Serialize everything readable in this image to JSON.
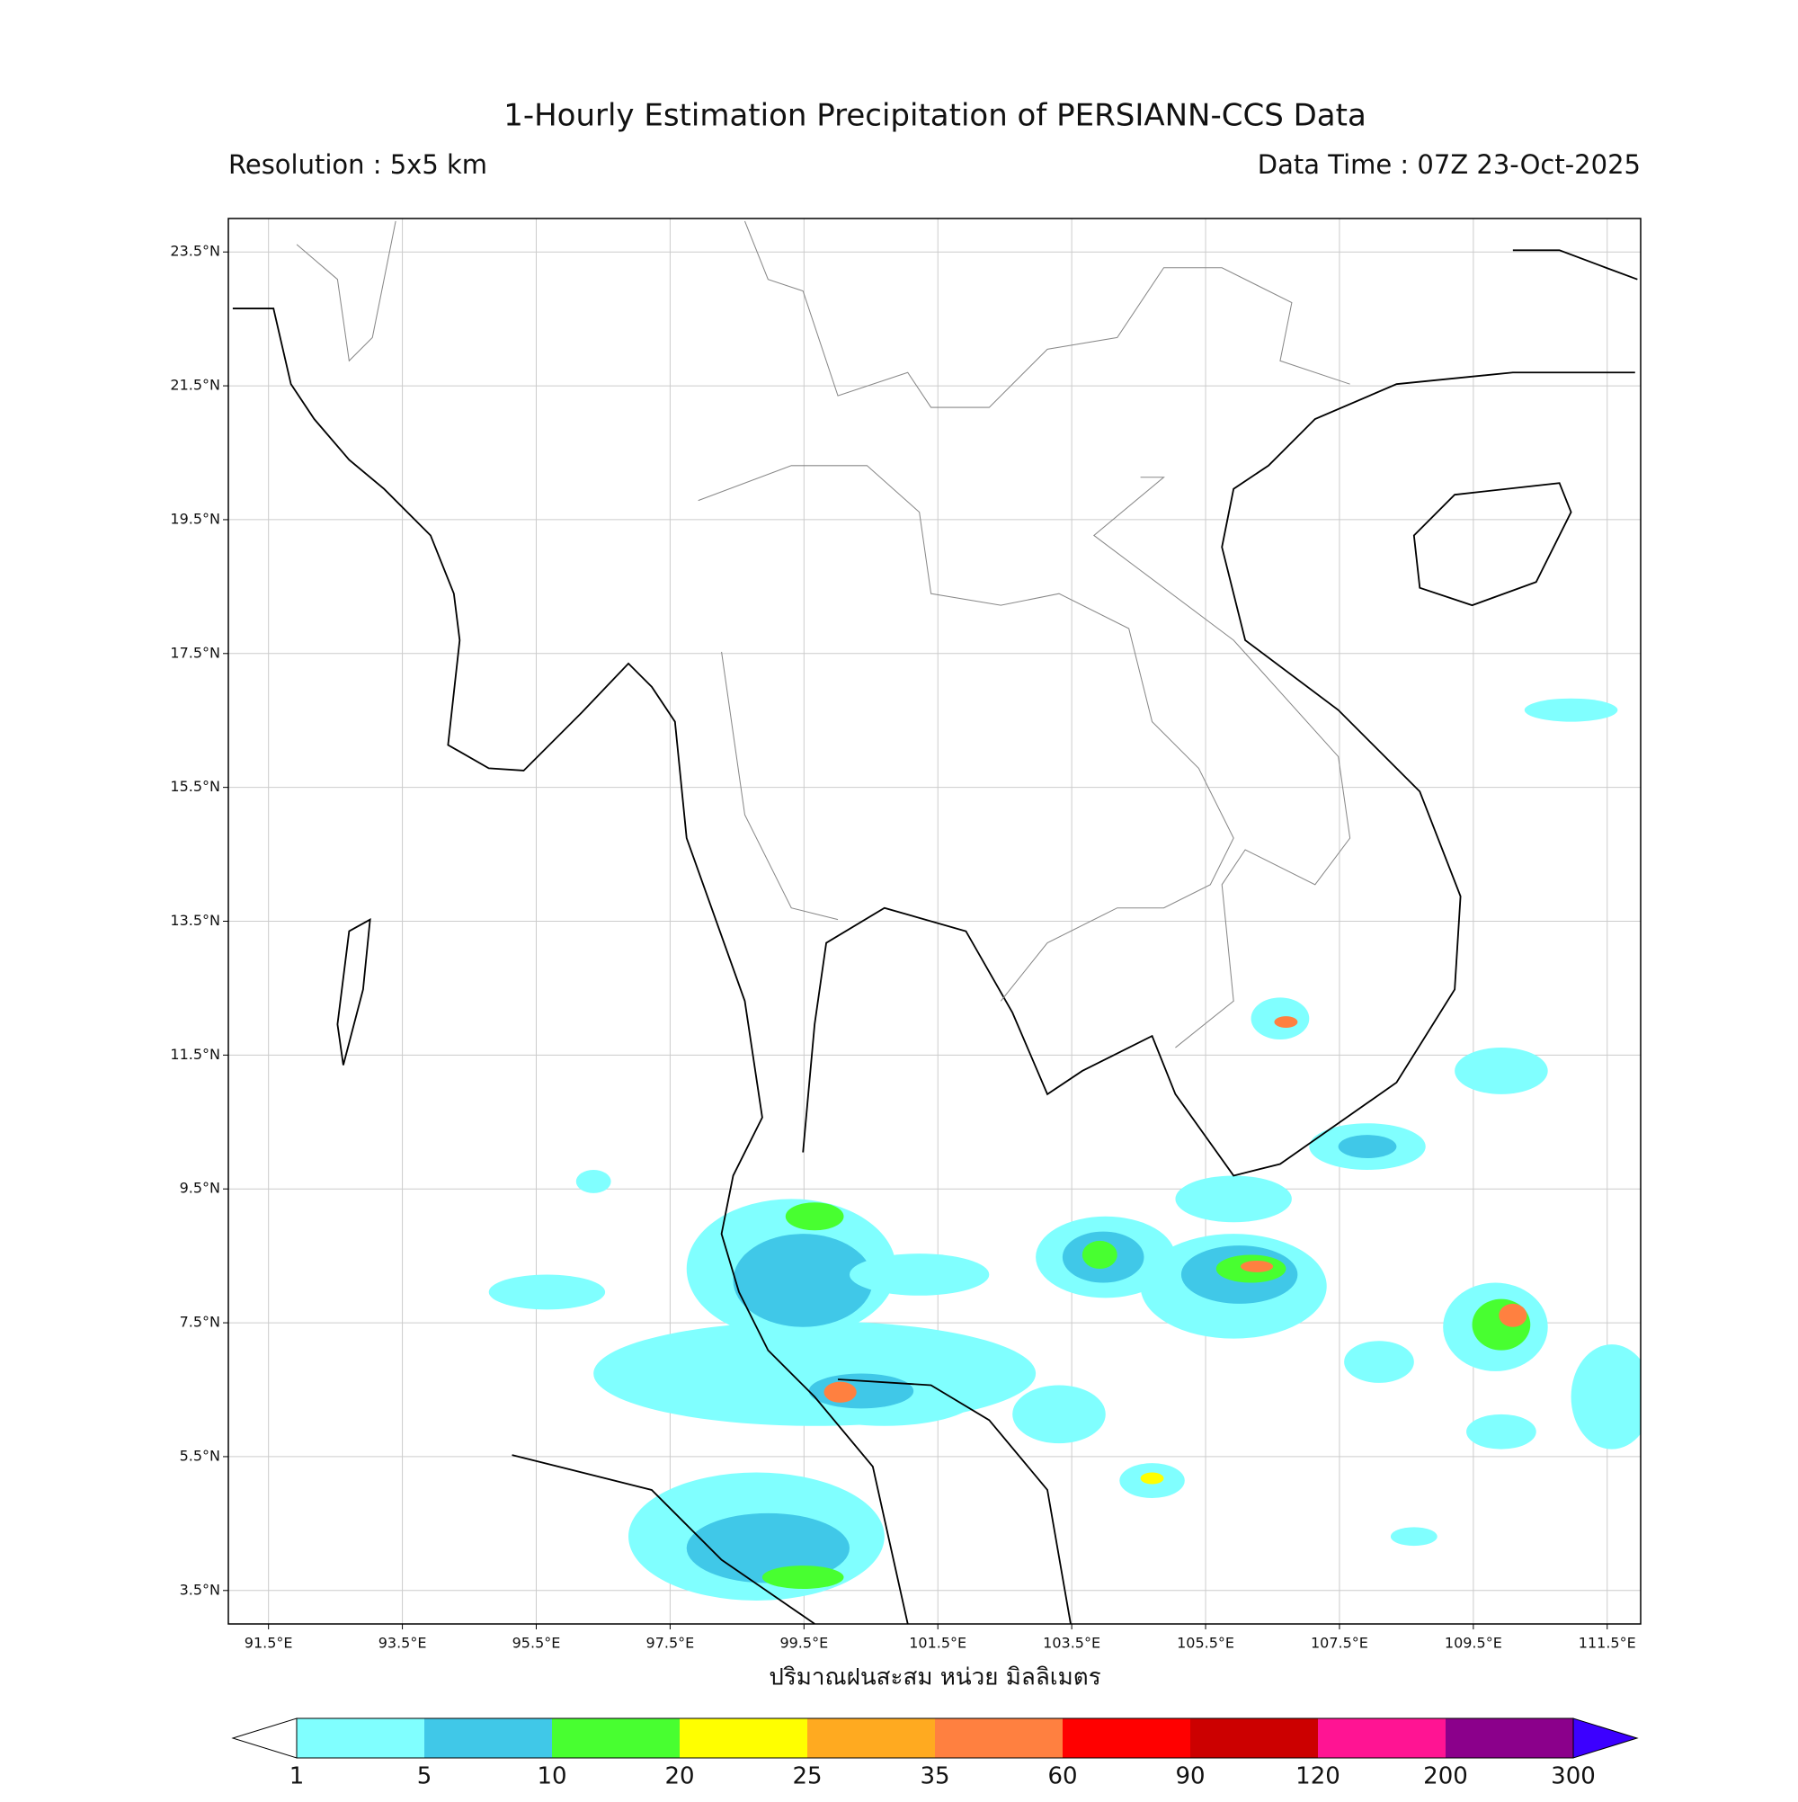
{
  "map": {
    "title": "1-Hourly Estimation Precipitation of PERSIANN-CCS Data",
    "resolution": "Resolution : 5x5 km",
    "data_time": "Data Time : 07Z 23-Oct-2025",
    "lon_range": [
      90.9,
      112.0
    ],
    "lat_range": [
      3.0,
      24.0
    ],
    "grid": true,
    "lon_ticks": [
      {
        "value": 91.5,
        "label": "91.5°E"
      },
      {
        "value": 93.5,
        "label": "93.5°E"
      },
      {
        "value": 95.5,
        "label": "95.5°E"
      },
      {
        "value": 97.5,
        "label": "97.5°E"
      },
      {
        "value": 99.5,
        "label": "99.5°E"
      },
      {
        "value": 101.5,
        "label": "101.5°E"
      },
      {
        "value": 103.5,
        "label": "103.5°E"
      },
      {
        "value": 105.5,
        "label": "105.5°E"
      },
      {
        "value": 107.5,
        "label": "107.5°E"
      },
      {
        "value": 109.5,
        "label": "109.5°E"
      },
      {
        "value": 111.5,
        "label": "111.5°E"
      }
    ],
    "lat_ticks": [
      {
        "value": 23.5,
        "label": "23.5°N"
      },
      {
        "value": 21.5,
        "label": "21.5°N"
      },
      {
        "value": 19.5,
        "label": "19.5°N"
      },
      {
        "value": 17.5,
        "label": "17.5°N"
      },
      {
        "value": 15.5,
        "label": "15.5°N"
      },
      {
        "value": 13.5,
        "label": "13.5°N"
      },
      {
        "value": 11.5,
        "label": "11.5°N"
      },
      {
        "value": 9.5,
        "label": "9.5°N"
      },
      {
        "value": 7.5,
        "label": "7.5°N"
      },
      {
        "value": 5.5,
        "label": "5.5°N"
      },
      {
        "value": 3.5,
        "label": "3.5°N"
      }
    ],
    "colorbar": {
      "label": "ปริมาณฝนสะสม หน่วย มิลลิเมตร",
      "levels": [
        1,
        5,
        10,
        20,
        25,
        35,
        60,
        90,
        120,
        200,
        300
      ],
      "colors": [
        "#80ffff",
        "#40c8e8",
        "#48ff30",
        "#ffff00",
        "#ffaa20",
        "#ff8040",
        "#ff0000",
        "#cc0000",
        "#ff1493",
        "#8b008b"
      ],
      "under_color": "#ffffff",
      "over_color": "#3c00ff"
    }
  }
}
